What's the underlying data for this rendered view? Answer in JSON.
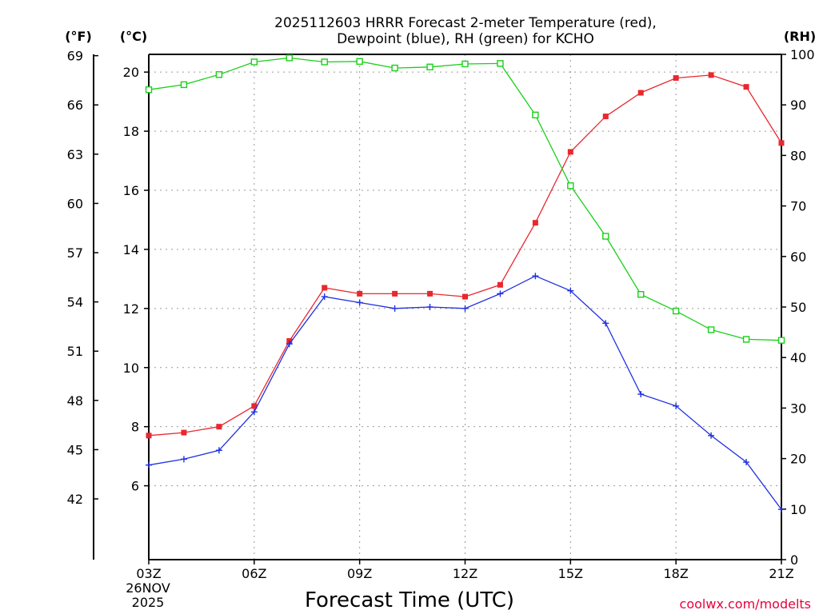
{
  "chart_data": {
    "type": "line",
    "title": "2025112603 HRRR Forecast 2-meter Temperature (red),",
    "subtitle": "Dewpoint (blue), RH (green) for KCHO",
    "xlabel": "Forecast Time (UTC)",
    "units": {
      "fahrenheit": "(°F)",
      "celsius": "(°C)",
      "rh": "(RH)"
    },
    "x": [
      3,
      4,
      5,
      6,
      7,
      8,
      9,
      10,
      11,
      12,
      13,
      14,
      15,
      16,
      17,
      18,
      19,
      20,
      21
    ],
    "x_ticks": [
      {
        "x": 3,
        "label": "03Z"
      },
      {
        "x": 6,
        "label": "06Z"
      },
      {
        "x": 9,
        "label": "09Z"
      },
      {
        "x": 12,
        "label": "12Z"
      },
      {
        "x": 15,
        "label": "15Z"
      },
      {
        "x": 18,
        "label": "18Z"
      },
      {
        "x": 21,
        "label": "21Z"
      }
    ],
    "date_label": {
      "line1": "26NOV",
      "line2": "2025"
    },
    "celsius_axis": {
      "range": [
        3.5,
        20.6
      ],
      "ticks": [
        6,
        8,
        10,
        12,
        14,
        16,
        18,
        20
      ]
    },
    "fahrenheit_axis": {
      "ticks": [
        42,
        45,
        48,
        51,
        54,
        57,
        60,
        63,
        66,
        69
      ]
    },
    "rh_axis": {
      "range": [
        0,
        100
      ],
      "ticks": [
        0,
        10,
        20,
        30,
        40,
        50,
        60,
        70,
        80,
        90,
        100
      ]
    },
    "series": [
      {
        "name": "Temperature",
        "axis": "celsius",
        "color": "#e8282e",
        "marker": "filled-square",
        "values": [
          7.7,
          7.8,
          8.0,
          8.7,
          10.9,
          12.7,
          12.5,
          12.5,
          12.5,
          12.4,
          12.8,
          14.9,
          17.3,
          18.5,
          19.3,
          19.8,
          19.9,
          19.5,
          17.6
        ]
      },
      {
        "name": "Dewpoint",
        "axis": "celsius",
        "color": "#2030e0",
        "marker": "plus",
        "values": [
          6.7,
          6.9,
          7.2,
          8.5,
          10.8,
          12.4,
          12.2,
          12.0,
          12.05,
          12.0,
          12.5,
          13.1,
          12.6,
          11.5,
          9.1,
          8.7,
          7.7,
          6.8,
          5.2
        ]
      },
      {
        "name": "RH",
        "axis": "rh",
        "color": "#19d019",
        "marker": "open-square",
        "values": [
          93,
          94,
          96,
          98.5,
          99.3,
          98.5,
          98.6,
          97.3,
          97.5,
          98.1,
          98.2,
          88,
          74,
          64,
          52.5,
          49.2,
          45.5,
          43.6,
          43.4
        ]
      }
    ],
    "grid": true
  },
  "credit": "coolwx.com/modelts"
}
